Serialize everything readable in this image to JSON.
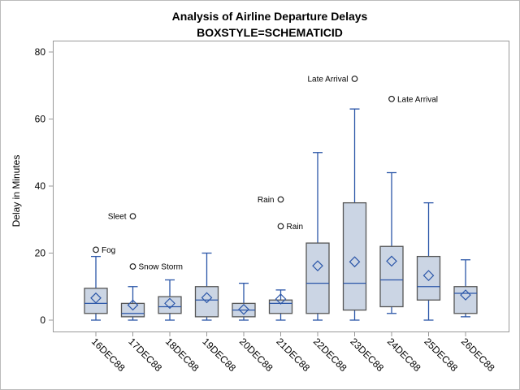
{
  "chart_data": {
    "type": "box",
    "title": "Analysis of Airline Departure Delays",
    "subtitle": "BOXSTYLE=SCHEMATICID",
    "xlabel": "",
    "ylabel": "Delay in Minutes",
    "ylim": [
      0,
      80
    ],
    "yticks": [
      0,
      20,
      40,
      60,
      80
    ],
    "grid": false,
    "colors": {
      "fill": "#cbd5e4",
      "whisker": "#2b56a8",
      "box_edge": "#555555",
      "mean": "#2b56a8",
      "outlier": "#222222"
    },
    "categories": [
      "16DEC88",
      "17DEC88",
      "18DEC88",
      "19DEC88",
      "20DEC88",
      "21DEC88",
      "22DEC88",
      "23DEC88",
      "24DEC88",
      "25DEC88",
      "26DEC88"
    ],
    "boxes": [
      {
        "min": 0,
        "q1": 2,
        "median": 5,
        "q3": 9.5,
        "max": 19,
        "mean": 6.6,
        "outliers": [
          {
            "value": 21,
            "label": "Fog",
            "side": "right"
          }
        ]
      },
      {
        "min": 0,
        "q1": 1,
        "median": 2,
        "q3": 5,
        "max": 10,
        "mean": 4.5,
        "outliers": [
          {
            "value": 31,
            "label": "Sleet",
            "side": "left"
          },
          {
            "value": 16,
            "label": "Snow Storm",
            "side": "right"
          }
        ]
      },
      {
        "min": 0,
        "q1": 2,
        "median": 4,
        "q3": 7,
        "max": 12,
        "mean": 5,
        "outliers": []
      },
      {
        "min": 0,
        "q1": 1,
        "median": 6,
        "q3": 10,
        "max": 20,
        "mean": 6.7,
        "outliers": []
      },
      {
        "min": 0,
        "q1": 1,
        "median": 3,
        "q3": 5,
        "max": 11,
        "mean": 3.2,
        "outliers": []
      },
      {
        "min": 0,
        "q1": 2,
        "median": 5,
        "q3": 6,
        "max": 9,
        "mean": 6.3,
        "outliers": [
          {
            "value": 36,
            "label": "Rain",
            "side": "left"
          },
          {
            "value": 28,
            "label": "Rain",
            "side": "right"
          }
        ]
      },
      {
        "min": 0,
        "q1": 2,
        "median": 11,
        "q3": 23,
        "max": 50,
        "mean": 16.2,
        "outliers": []
      },
      {
        "min": 0,
        "q1": 3,
        "median": 11,
        "q3": 35,
        "max": 63,
        "mean": 17.4,
        "outliers": [
          {
            "value": 72,
            "label": "Late Arrival",
            "side": "left"
          }
        ]
      },
      {
        "min": 2,
        "q1": 4,
        "median": 12,
        "q3": 22,
        "max": 44,
        "mean": 17.6,
        "outliers": [
          {
            "value": 66,
            "label": "Late Arrival",
            "side": "right"
          }
        ]
      },
      {
        "min": 0,
        "q1": 6,
        "median": 10,
        "q3": 19,
        "max": 35,
        "mean": 13.3,
        "outliers": []
      },
      {
        "min": 1,
        "q1": 2,
        "median": 8,
        "q3": 10,
        "max": 18,
        "mean": 7.5,
        "outliers": []
      }
    ]
  }
}
